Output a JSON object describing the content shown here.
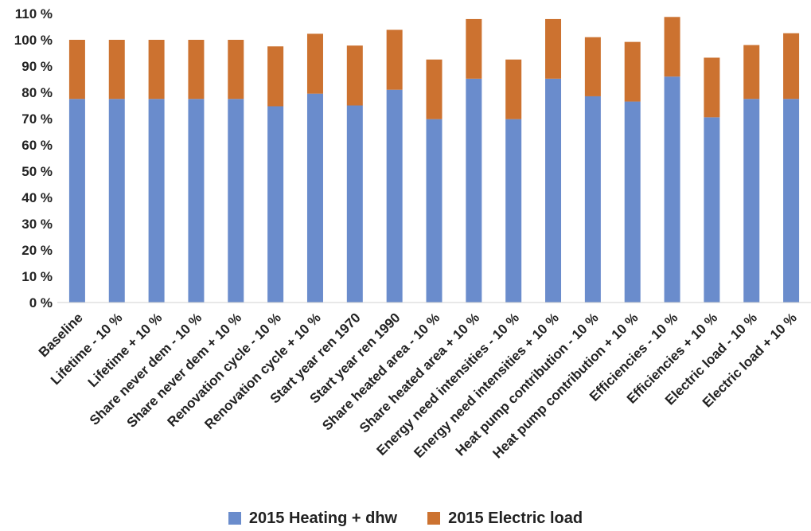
{
  "chart_data": {
    "type": "bar",
    "stacked": true,
    "categories": [
      "Baseline",
      "Lifetime - 10 %",
      "Lifetime + 10 %",
      "Share never dem - 10 %",
      "Share never dem + 10 %",
      "Renovation cycle - 10 %",
      "Renovation cycle + 10 %",
      "Start year ren 1970",
      "Start year ren 1990",
      "Share heated area - 10 %",
      "Share heated area + 10 %",
      "Energy need intensities - 10 %",
      "Energy need intensities + 10 %",
      "Heat pump contribution - 10 %",
      "Heat pump contribution + 10 %",
      "Efficiencies - 10 %",
      "Efficiencies + 10 %",
      "Electric load - 10 %",
      "Electric load + 10 %"
    ],
    "series": [
      {
        "name": "2015 Heating + dhw",
        "color": "#6a8ccc",
        "values": [
          77.5,
          77.5,
          77.5,
          77.5,
          77.5,
          74.7,
          79.5,
          75.0,
          81.0,
          69.8,
          85.2,
          69.8,
          85.2,
          78.5,
          76.5,
          86.0,
          70.5,
          77.5,
          77.5
        ]
      },
      {
        "name": "2015 Electric load",
        "color": "#cc7230",
        "values": [
          22.5,
          22.5,
          22.5,
          22.5,
          22.5,
          22.8,
          22.8,
          22.8,
          22.8,
          22.7,
          22.7,
          22.7,
          22.7,
          22.5,
          22.7,
          22.7,
          22.7,
          20.5,
          25.0
        ]
      }
    ],
    "yticks": [
      "0 %",
      "10 %",
      "20 %",
      "30 %",
      "40 %",
      "50 %",
      "60 %",
      "70 %",
      "80 %",
      "90 %",
      "100 %",
      "110 %"
    ],
    "ylim": [
      0,
      110
    ],
    "legend_position": "bottom",
    "grid": false
  }
}
